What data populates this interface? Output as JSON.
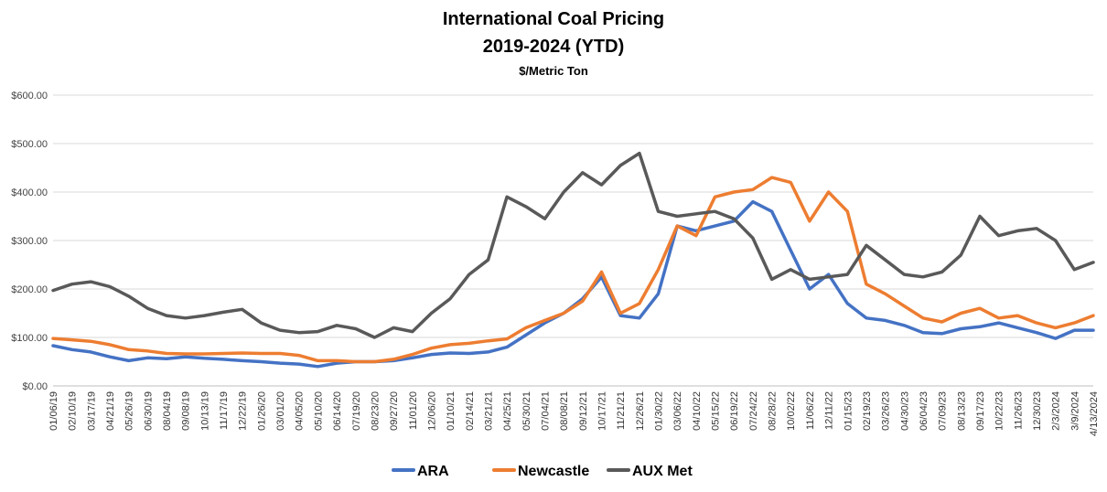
{
  "chart_data": {
    "type": "line",
    "title": "International Coal Pricing",
    "subtitle": "2019-2024 (YTD)",
    "units_label": "$/Metric Ton",
    "ylim": [
      0,
      600
    ],
    "yticks": [
      0,
      100,
      200,
      300,
      400,
      500,
      600
    ],
    "ytick_labels": [
      "$0.00",
      "$100.00",
      "$200.00",
      "$300.00",
      "$400.00",
      "$500.00",
      "$600.00"
    ],
    "grid": true,
    "legend_position": "bottom",
    "x_tick_labels": [
      "01/06/19",
      "02/10/19",
      "03/17/19",
      "04/21/19",
      "05/26/19",
      "06/30/19",
      "08/04/19",
      "09/08/19",
      "10/13/19",
      "11/17/19",
      "12/22/19",
      "01/26/20",
      "03/01/20",
      "04/05/20",
      "05/10/20",
      "06/14/20",
      "07/19/20",
      "08/23/20",
      "09/27/20",
      "11/01/20",
      "12/06/20",
      "01/10/21",
      "02/14/21",
      "03/21/21",
      "04/25/21",
      "05/30/21",
      "07/04/21",
      "08/08/21",
      "09/12/21",
      "10/17/21",
      "11/21/21",
      "12/26/21",
      "01/30/22",
      "03/06/22",
      "04/10/22",
      "05/15/22",
      "06/19/22",
      "07/24/22",
      "08/28/22",
      "10/02/22",
      "11/06/22",
      "12/11/22",
      "01/15/23",
      "02/19/23",
      "03/26/23",
      "04/30/23",
      "06/04/23",
      "07/09/23",
      "08/13/23",
      "09/17/23",
      "10/22/23",
      "11/26/23",
      "12/30/23",
      "2/3/2024",
      "3/9/2024",
      "4/13/2024"
    ],
    "x": [
      "01/06/19",
      "02/10/19",
      "03/17/19",
      "04/21/19",
      "05/26/19",
      "06/30/19",
      "08/04/19",
      "09/08/19",
      "10/13/19",
      "11/17/19",
      "12/22/19",
      "01/26/20",
      "03/01/20",
      "04/05/20",
      "05/10/20",
      "06/14/20",
      "07/19/20",
      "08/23/20",
      "09/27/20",
      "11/01/20",
      "12/06/20",
      "01/10/21",
      "02/14/21",
      "03/21/21",
      "04/25/21",
      "05/30/21",
      "07/04/21",
      "08/08/21",
      "09/12/21",
      "10/17/21",
      "11/21/21",
      "12/26/21",
      "01/30/22",
      "03/06/22",
      "04/10/22",
      "05/15/22",
      "06/19/22",
      "07/24/22",
      "08/28/22",
      "10/02/22",
      "11/06/22",
      "12/11/22",
      "01/15/23",
      "02/19/23",
      "03/26/23",
      "04/30/23",
      "06/04/23",
      "07/09/23",
      "08/13/23",
      "09/17/23",
      "10/22/23",
      "11/26/23",
      "12/30/23",
      "2/3/2024",
      "3/9/2024",
      "4/13/2024"
    ],
    "series": [
      {
        "name": "ARA",
        "color": "#4472C4",
        "values": [
          83,
          75,
          70,
          60,
          52,
          58,
          56,
          60,
          57,
          55,
          52,
          50,
          47,
          45,
          40,
          47,
          50,
          50,
          52,
          58,
          65,
          68,
          67,
          70,
          80,
          105,
          130,
          150,
          180,
          225,
          145,
          140,
          190,
          330,
          320,
          330,
          340,
          380,
          360,
          280,
          200,
          230,
          170,
          140,
          135,
          125,
          110,
          108,
          118,
          122,
          130,
          120,
          110,
          98,
          115,
          115
        ]
      },
      {
        "name": "Newcastle",
        "color": "#ED7D31",
        "values": [
          98,
          95,
          92,
          85,
          75,
          72,
          67,
          66,
          66,
          67,
          68,
          67,
          67,
          63,
          52,
          52,
          50,
          50,
          55,
          65,
          78,
          85,
          88,
          93,
          97,
          120,
          135,
          150,
          175,
          235,
          150,
          170,
          240,
          330,
          310,
          390,
          400,
          405,
          430,
          420,
          340,
          400,
          360,
          210,
          190,
          165,
          140,
          132,
          150,
          160,
          140,
          145,
          130,
          120,
          130,
          145
        ]
      },
      {
        "name": "AUX Met",
        "color": "#595959",
        "values": [
          197,
          210,
          215,
          205,
          185,
          160,
          145,
          140,
          145,
          152,
          158,
          130,
          115,
          110,
          112,
          125,
          118,
          100,
          120,
          112,
          150,
          180,
          230,
          260,
          390,
          370,
          345,
          400,
          440,
          415,
          455,
          480,
          360,
          350,
          355,
          360,
          345,
          305,
          220,
          240,
          220,
          225,
          230,
          290,
          260,
          230,
          225,
          235,
          270,
          350,
          310,
          320,
          325,
          300,
          240,
          255
        ]
      }
    ]
  }
}
